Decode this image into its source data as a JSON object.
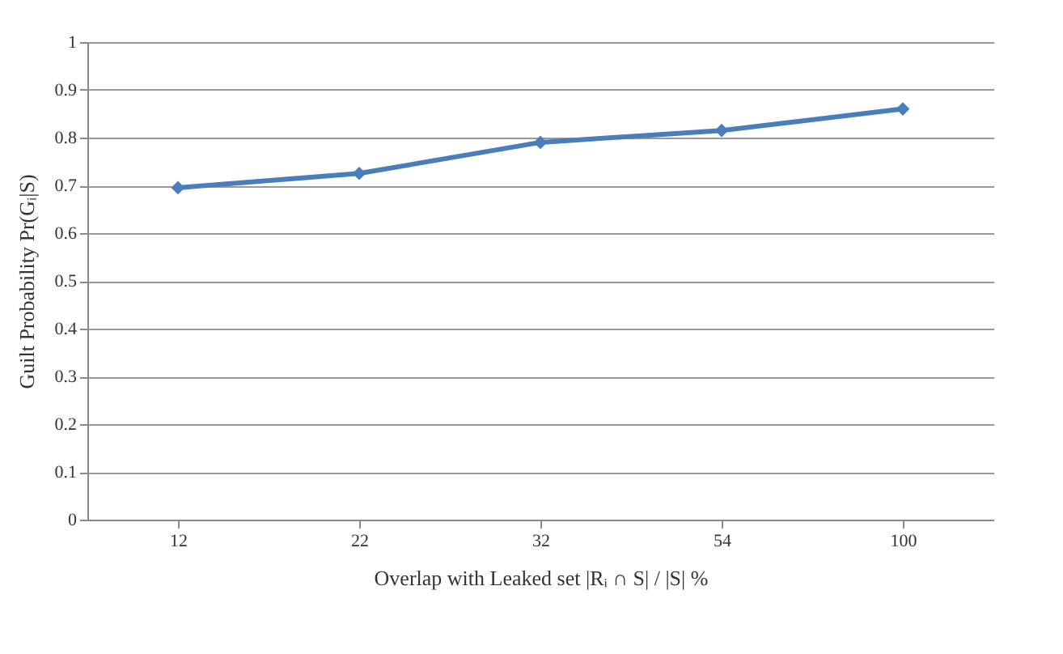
{
  "chart_data": {
    "type": "line",
    "xlabel": "Overlap with Leaked set |Rᵢ ∩ S| / |S| %",
    "ylabel": "Guilt Probability Pr(Gᵢ|S)",
    "categories": [
      "12",
      "22",
      "32",
      "54",
      "100"
    ],
    "series": [
      {
        "color": "#4a7ebb",
        "values": [
          0.695,
          0.725,
          0.79,
          0.815,
          0.86
        ]
      }
    ],
    "ylim": [
      0,
      1
    ],
    "yticks": [
      0,
      0.1,
      0.2,
      0.3,
      0.4,
      0.5,
      0.6,
      0.7,
      0.8,
      0.9,
      1
    ],
    "grid": "y",
    "marker": "diamond",
    "line_style": "solid"
  }
}
